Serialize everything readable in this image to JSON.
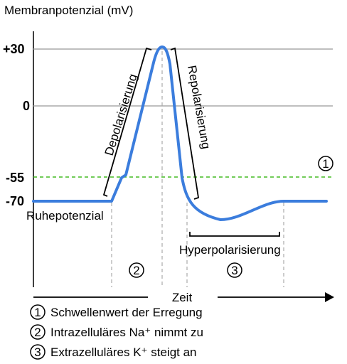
{
  "title": "Membranpotenzial (mV)",
  "y_ticks": [
    {
      "value": 30,
      "label": "+30"
    },
    {
      "value": 0,
      "label": "0"
    },
    {
      "value": -55,
      "label": "-55"
    },
    {
      "value": -70,
      "label": "-70"
    }
  ],
  "x_axis_label": "Zeit",
  "phase_labels": {
    "depolarisierung": "Depolarisierung",
    "repolarisierung": "Repolarisierung",
    "hyperpolarisierung": "Hyperpolarisierung",
    "ruhepotenzial": "Ruhepotenzial"
  },
  "markers": {
    "threshold": "1",
    "phase2": "2",
    "phase3": "3"
  },
  "legend": [
    {
      "num": "1",
      "text": "Schwellenwert der Erregung"
    },
    {
      "num": "2",
      "text": "Intrazelluläres Na⁺ nimmt zu"
    },
    {
      "num": "3",
      "text": "Extrazelluläres K⁺ steigt an"
    }
  ],
  "colors": {
    "curve": "#3b7ddd",
    "threshold_line": "#44bb22",
    "grid": "#aaaaaa",
    "dashed_guides": "#aaaaaa",
    "text": "#000000"
  }
}
